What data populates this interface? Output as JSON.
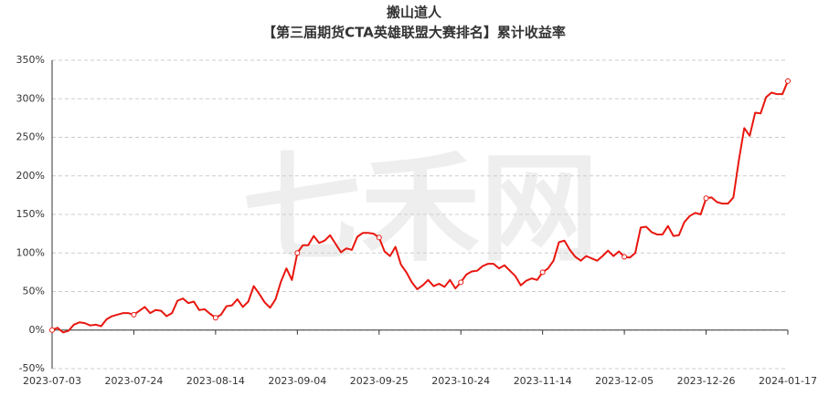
{
  "chart_data": {
    "type": "line",
    "title": "搬山道人",
    "subtitle": "【第三届期货CTA英雄联盟大赛排名】累计收益率",
    "watermark": "七禾网",
    "color": "#e8170f",
    "grid": true,
    "categories": [
      "2023-07-03",
      null,
      null,
      null,
      null,
      null,
      null,
      null,
      null,
      null,
      null,
      null,
      null,
      null,
      null,
      "2023-07-24",
      null,
      null,
      null,
      null,
      null,
      null,
      null,
      null,
      null,
      null,
      null,
      null,
      null,
      null,
      "2023-08-14",
      null,
      null,
      null,
      null,
      null,
      null,
      null,
      null,
      null,
      null,
      null,
      null,
      null,
      null,
      "2023-09-04",
      null,
      null,
      null,
      null,
      null,
      null,
      null,
      null,
      null,
      null,
      null,
      null,
      null,
      null,
      "2023-09-25",
      null,
      null,
      null,
      null,
      null,
      null,
      null,
      null,
      null,
      null,
      null,
      null,
      null,
      null,
      "2023-10-24",
      null,
      null,
      null,
      null,
      null,
      null,
      null,
      null,
      null,
      null,
      null,
      null,
      null,
      null,
      "2023-11-14",
      null,
      null,
      null,
      null,
      null,
      null,
      null,
      null,
      null,
      null,
      null,
      null,
      null,
      null,
      "2023-12-05",
      null,
      null,
      null,
      null,
      null,
      null,
      null,
      null,
      null,
      null,
      null,
      null,
      null,
      null,
      "2023-12-26",
      null,
      null,
      null,
      null,
      null,
      null,
      null,
      null,
      null,
      null,
      null,
      null,
      null,
      null,
      "2024-01-17"
    ],
    "values": [
      0,
      3,
      -3,
      -1,
      7,
      10,
      9,
      6,
      7,
      5,
      14,
      18,
      20,
      22,
      22,
      20,
      25,
      30,
      22,
      26,
      25,
      18,
      22,
      38,
      41,
      35,
      37,
      26,
      27,
      21,
      16,
      20,
      31,
      32,
      40,
      30,
      37,
      57,
      47,
      36,
      29,
      40,
      63,
      80,
      65,
      100,
      110,
      110,
      122,
      113,
      116,
      123,
      112,
      101,
      106,
      104,
      121,
      126,
      126,
      125,
      120,
      102,
      96,
      108,
      85,
      75,
      62,
      53,
      58,
      65,
      57,
      60,
      56,
      65,
      54,
      62,
      72,
      76,
      77,
      83,
      86,
      86,
      80,
      84,
      77,
      70,
      58,
      64,
      67,
      65,
      75,
      80,
      90,
      114,
      116,
      104,
      95,
      90,
      96,
      93,
      90,
      96,
      103,
      96,
      102,
      95,
      94,
      100,
      133,
      134,
      127,
      124,
      124,
      135,
      122,
      123,
      140,
      148,
      152,
      150,
      171,
      172,
      166,
      164,
      164,
      172,
      220,
      262,
      252,
      282,
      281,
      302,
      308,
      306,
      306,
      323
    ],
    "ylim": [
      -50,
      350
    ],
    "yticks": [
      {
        "value": -50,
        "label": "-50%"
      },
      {
        "value": 0,
        "label": "0%"
      },
      {
        "value": 50,
        "label": "50%"
      },
      {
        "value": 100,
        "label": "100%"
      },
      {
        "value": 150,
        "label": "150%"
      },
      {
        "value": 200,
        "label": "200%"
      },
      {
        "value": 250,
        "label": "250%"
      },
      {
        "value": 300,
        "label": "300%"
      },
      {
        "value": 350,
        "label": "350%"
      }
    ]
  }
}
